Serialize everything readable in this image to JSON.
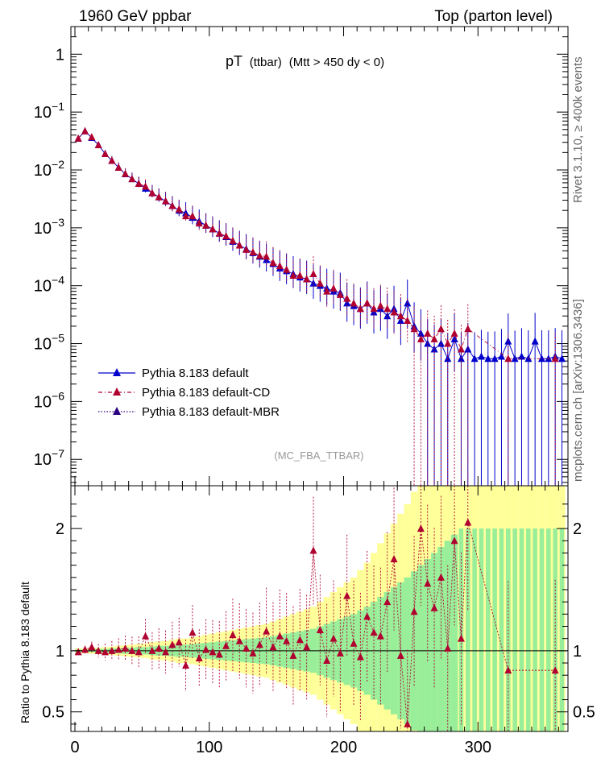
{
  "header": {
    "left_title": "1960 GeV ppbar",
    "right_title": "Top (parton level)"
  },
  "side_labels": {
    "rivet": "Rivet 3.1.10, ≥ 400k events",
    "mcplots": "mcplots.cern.ch [arXiv:1306.3436]"
  },
  "plot_title": {
    "main": "pT",
    "sub": "(ttbar)",
    "rest": "(Mtt > 450 dy < 0)"
  },
  "analysis_tag": "(MC_FBA_TTBAR)",
  "ratio_ylabel": "Ratio to Pythia 8.183 default",
  "colors": {
    "default": "#0000cc",
    "cd": "#b00030",
    "mbr": "#2a0080",
    "band_inner": "#99ee99",
    "band_outer": "#ffff99"
  },
  "chart_data": {
    "type": "scatter",
    "xlabel": "",
    "x_range": [
      -3,
      367
    ],
    "x_ticks": [
      "0",
      "100",
      "200",
      "300"
    ],
    "main": {
      "yscale": "log",
      "ylim": [
        3.5e-08,
        3.0
      ],
      "y_ticks": [
        {
          "base": "1",
          "exp": ""
        },
        {
          "base": "10",
          "exp": "−1"
        },
        {
          "base": "10",
          "exp": "−2"
        },
        {
          "base": "10",
          "exp": "−3"
        },
        {
          "base": "10",
          "exp": "−4"
        },
        {
          "base": "10",
          "exp": "−5"
        },
        {
          "base": "10",
          "exp": "−6"
        },
        {
          "base": "10",
          "exp": "−7"
        }
      ],
      "y_tick_values": [
        1,
        0.1,
        0.01,
        0.001,
        0.0001,
        1e-05,
        1e-06,
        1e-07
      ]
    },
    "ratio": {
      "ylim": [
        0.34,
        2.35
      ],
      "y_ticks": [
        "0.5",
        "1",
        "2"
      ],
      "y_tick_values": [
        0.5,
        1,
        2
      ]
    },
    "series": [
      {
        "name": "Pythia 8.183 default",
        "x": [
          2.5,
          7.5,
          12.5,
          17.5,
          22.5,
          27.5,
          32.5,
          37.5,
          42.5,
          47.5,
          52.5,
          57.5,
          62.5,
          67.5,
          72.5,
          77.5,
          82.5,
          87.5,
          92.5,
          97.5,
          102.5,
          107.5,
          112.5,
          117.5,
          122.5,
          127.5,
          132.5,
          137.5,
          142.5,
          147.5,
          152.5,
          157.5,
          162.5,
          167.5,
          172.5,
          177.5,
          182.5,
          187.5,
          192.5,
          197.5,
          202.5,
          207.5,
          212.5,
          217.5,
          222.5,
          227.5,
          232.5,
          237.5,
          242.5,
          247.5,
          252.5,
          257.5,
          262.5,
          267.5,
          272.5,
          277.5,
          282.5,
          287.5,
          292.5,
          297.5,
          302.5,
          307.5,
          312.5,
          317.5,
          322.5,
          327.5,
          332.5,
          337.5,
          342.5,
          347.5,
          352.5,
          357.5,
          362.5
        ],
        "y": [
          0.035,
          0.047,
          0.036,
          0.027,
          0.019,
          0.0145,
          0.011,
          0.0085,
          0.007,
          0.0058,
          0.0048,
          0.004,
          0.0034,
          0.0029,
          0.0024,
          0.002,
          0.0018,
          0.0015,
          0.0013,
          0.0011,
          0.00095,
          0.0008,
          0.0007,
          0.00058,
          0.0005,
          0.00043,
          0.00037,
          0.00032,
          0.00028,
          0.00024,
          0.0002,
          0.00018,
          0.00016,
          0.00014,
          0.00013,
          0.00011,
          0.0001,
          9e-05,
          8e-05,
          7.5e-05,
          5e-05,
          4.5e-05,
          4e-05,
          5e-05,
          3.5e-05,
          4e-05,
          3e-05,
          4e-05,
          2.5e-05,
          5e-05,
          2e-05,
          1.5e-05,
          1e-05,
          8e-06,
          1e-05,
          5.5e-06,
          1.2e-05,
          5.5e-06,
          8e-06,
          5.5e-06,
          6e-06,
          5.5e-06,
          5.5e-06,
          6e-06,
          1.1e-05,
          5.5e-06,
          6e-06,
          5.5e-06,
          1.1e-05,
          5.5e-06,
          5.5e-06,
          6e-06,
          5.5e-06
        ]
      },
      {
        "name": "Pythia 8.183 default-CD",
        "x": [
          2.5,
          7.5,
          12.5,
          17.5,
          22.5,
          27.5,
          32.5,
          37.5,
          42.5,
          47.5,
          52.5,
          57.5,
          62.5,
          67.5,
          72.5,
          77.5,
          82.5,
          87.5,
          92.5,
          97.5,
          102.5,
          107.5,
          112.5,
          117.5,
          122.5,
          127.5,
          132.5,
          137.5,
          142.5,
          147.5,
          152.5,
          157.5,
          162.5,
          167.5,
          172.5,
          177.5,
          182.5,
          187.5,
          192.5,
          197.5,
          202.5,
          207.5,
          212.5,
          217.5,
          222.5,
          227.5,
          232.5,
          237.5,
          242.5,
          247.5,
          252.5,
          257.5,
          262.5,
          267.5,
          272.5,
          277.5,
          282.5,
          287.5,
          292.5,
          322.5,
          357.5
        ],
        "y": [
          0.035,
          0.047,
          0.037,
          0.027,
          0.019,
          0.0145,
          0.011,
          0.0086,
          0.007,
          0.0058,
          0.0052,
          0.004,
          0.0034,
          0.0029,
          0.0024,
          0.0021,
          0.0016,
          0.0016,
          0.0012,
          0.0011,
          0.00095,
          0.0008,
          0.00072,
          0.0006,
          0.0005,
          0.00042,
          0.00038,
          0.00033,
          0.00032,
          0.00025,
          0.00022,
          0.00019,
          0.00015,
          0.00015,
          0.00013,
          0.00016,
          0.00011,
          8e-05,
          9e-05,
          7e-05,
          6e-05,
          5e-05,
          4e-05,
          5e-05,
          4e-05,
          4.5e-05,
          4e-05,
          3.5e-05,
          3e-05,
          2.5e-05,
          1.8e-05,
          1.2e-05,
          1.5e-05,
          1.2e-05,
          1.8e-05,
          1e-05,
          1.5e-05,
          8e-06,
          1.8e-05,
          5.5e-06,
          5.5e-06
        ]
      },
      {
        "name": "Pythia 8.183 default-MBR",
        "x": [],
        "y": []
      }
    ],
    "ratio_points": {
      "series": "Pythia 8.183 default-CD",
      "x": [
        2.5,
        7.5,
        12.5,
        17.5,
        22.5,
        27.5,
        32.5,
        37.5,
        42.5,
        47.5,
        52.5,
        57.5,
        62.5,
        67.5,
        72.5,
        77.5,
        82.5,
        87.5,
        92.5,
        97.5,
        102.5,
        107.5,
        112.5,
        117.5,
        122.5,
        127.5,
        132.5,
        137.5,
        142.5,
        147.5,
        152.5,
        157.5,
        162.5,
        167.5,
        172.5,
        177.5,
        182.5,
        187.5,
        192.5,
        197.5,
        202.5,
        207.5,
        212.5,
        217.5,
        222.5,
        227.5,
        232.5,
        237.5,
        242.5,
        247.5,
        252.5,
        257.5,
        262.5,
        267.5,
        272.5,
        277.5,
        282.5,
        287.5,
        292.5,
        322.5,
        357.5
      ],
      "y": [
        0.99,
        1.01,
        1.03,
        1.0,
        0.99,
        1.0,
        1.01,
        1.02,
        1.0,
        0.99,
        1.12,
        1.0,
        1.02,
        0.99,
        1.05,
        1.07,
        0.88,
        1.15,
        0.94,
        1.01,
        0.99,
        0.97,
        1.04,
        1.13,
        1.08,
        1.02,
        0.98,
        1.05,
        1.16,
        1.03,
        1.12,
        1.08,
        0.96,
        1.09,
        1.03,
        1.82,
        1.17,
        0.92,
        1.1,
        0.98,
        1.45,
        1.06,
        0.95,
        1.28,
        1.15,
        1.12,
        1.4,
        1.75,
        0.96,
        0.4,
        1.32,
        2.0,
        1.55,
        1.35,
        1.6,
        1.02,
        1.9,
        1.1,
        2.05,
        0.84,
        0.84
      ]
    },
    "band_inner_halfwidth": [
      0.01,
      0.01,
      0.01,
      0.015,
      0.015,
      0.02,
      0.02,
      0.025,
      0.025,
      0.03,
      0.03,
      0.035,
      0.04,
      0.04,
      0.045,
      0.05,
      0.05,
      0.055,
      0.06,
      0.065,
      0.07,
      0.075,
      0.08,
      0.085,
      0.09,
      0.095,
      0.1,
      0.105,
      0.11,
      0.12,
      0.13,
      0.14,
      0.15,
      0.16,
      0.17,
      0.18,
      0.2,
      0.22,
      0.24,
      0.26,
      0.28,
      0.3,
      0.33,
      0.36,
      0.4,
      0.44,
      0.48,
      0.52,
      0.56,
      0.6,
      0.65,
      0.7,
      0.75,
      0.8,
      0.85,
      0.9,
      0.95,
      1.0,
      1.0,
      1.0,
      1.0,
      1.0,
      1.0,
      1.0,
      1.0,
      1.0,
      1.0,
      1.0,
      1.0,
      1.0,
      1.0,
      1.0,
      1.0
    ],
    "band_outer_halfwidth": [
      0.02,
      0.02,
      0.025,
      0.025,
      0.03,
      0.035,
      0.04,
      0.045,
      0.05,
      0.055,
      0.06,
      0.07,
      0.075,
      0.08,
      0.09,
      0.1,
      0.1,
      0.11,
      0.12,
      0.13,
      0.14,
      0.15,
      0.16,
      0.17,
      0.18,
      0.19,
      0.2,
      0.21,
      0.22,
      0.24,
      0.26,
      0.28,
      0.3,
      0.32,
      0.34,
      0.36,
      0.4,
      0.44,
      0.48,
      0.52,
      0.56,
      0.6,
      0.66,
      0.72,
      0.8,
      0.88,
      0.96,
      1.04,
      1.12,
      1.2,
      1.3,
      1.4,
      1.5,
      1.6,
      1.7,
      1.8,
      1.9,
      2.0,
      2.0,
      2.0,
      2.0,
      2.0,
      2.0,
      2.0,
      2.0,
      2.0,
      2.0,
      2.0,
      2.0,
      2.0,
      2.0,
      2.0,
      2.0
    ]
  }
}
